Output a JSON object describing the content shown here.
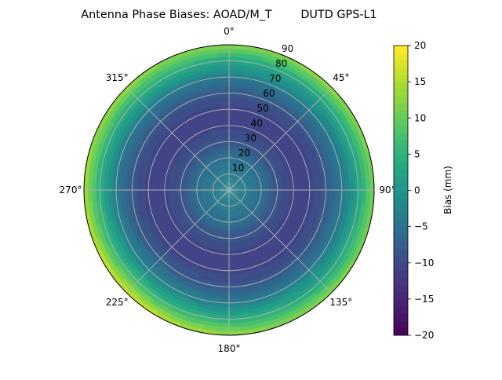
{
  "chart_data": {
    "type": "heatmap",
    "projection": "polar",
    "title": "Antenna Phase Biases: AOAD/M_T        DUTD GPS-L1",
    "theta_direction": "clockwise",
    "theta_zero": "top",
    "theta_ticks": [
      "0°",
      "45°",
      "90°",
      "135°",
      "180°",
      "225°",
      "270°",
      "315°"
    ],
    "r_ticks": [
      "10",
      "20",
      "30",
      "40",
      "50",
      "60",
      "70",
      "80",
      "90"
    ],
    "r_range": [
      0,
      90
    ],
    "grid": true,
    "azimuths": [
      0,
      45,
      90,
      135,
      180,
      225,
      270,
      315
    ],
    "zeniths": [
      0,
      10,
      20,
      30,
      40,
      50,
      60,
      70,
      80,
      90
    ],
    "values": [
      [
        -2,
        -3,
        -5,
        -8,
        -10,
        -10,
        -8,
        -3,
        4,
        13
      ],
      [
        -2,
        -3,
        -5,
        -8,
        -10,
        -10,
        -8,
        -3,
        4,
        14
      ],
      [
        -2,
        -3,
        -5,
        -8,
        -10,
        -10,
        -8,
        -4,
        3,
        12
      ],
      [
        -2,
        -3,
        -5,
        -8,
        -10,
        -10,
        -8,
        -3,
        4,
        13
      ],
      [
        -2,
        -3,
        -5,
        -8,
        -10,
        -10,
        -8,
        -3,
        5,
        14
      ],
      [
        -2,
        -3,
        -5,
        -8,
        -10,
        -10,
        -7,
        -2,
        7,
        18
      ],
      [
        -2,
        -3,
        -5,
        -8,
        -10,
        -10,
        -8,
        -3,
        5,
        15
      ],
      [
        -2,
        -3,
        -5,
        -8,
        -10,
        -10,
        -8,
        -3,
        5,
        14
      ]
    ],
    "colormap": "viridis",
    "colorbar": {
      "label": "Bias (mm)",
      "range": [
        -20,
        20
      ],
      "ticks": [
        "20",
        "15",
        "10",
        "5",
        "0",
        "−5",
        "−10",
        "−15",
        "−20"
      ],
      "tick_values": [
        20,
        15,
        10,
        5,
        0,
        -5,
        -10,
        -15,
        -20
      ]
    }
  }
}
